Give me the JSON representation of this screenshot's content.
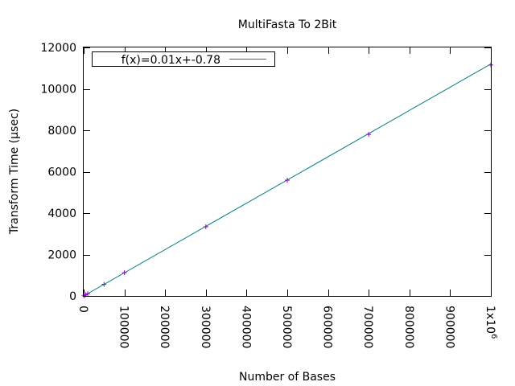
{
  "chart_data": {
    "type": "line",
    "title": "MultiFasta To 2Bit",
    "xlabel": "Number of Bases",
    "ylabel": "Transform Time (µsec)",
    "xlim": [
      0,
      1000000
    ],
    "ylim": [
      0,
      12000
    ],
    "x_ticks": [
      0,
      100000,
      200000,
      300000,
      400000,
      500000,
      600000,
      700000,
      800000,
      900000,
      1000000
    ],
    "x_tick_labels": [
      "0",
      "100000",
      "200000",
      "300000",
      "400000",
      "500000",
      "600000",
      "700000",
      "800000",
      "900000",
      "1x10"
    ],
    "x_tick_label_last_superscript": "6",
    "y_ticks": [
      0,
      2000,
      4000,
      6000,
      8000,
      10000,
      12000
    ],
    "y_tick_labels": [
      "0",
      "2000",
      "4000",
      "6000",
      "8000",
      "10000",
      "12000"
    ],
    "grid": false,
    "legend_position": "top-left",
    "series": [
      {
        "name": "f(x)=0.01x+-0.78",
        "kind": "fit-line",
        "color": "#008080",
        "slope": 0.0112,
        "intercept": -0.78,
        "x": [
          0,
          1000000
        ],
        "y": [
          0,
          11200
        ]
      },
      {
        "kind": "points",
        "marker": "plus",
        "color": "#9400d3",
        "x": [
          1000,
          5000,
          10000,
          50000,
          100000,
          300000,
          500000,
          700000,
          1000000
        ],
        "y": [
          12,
          55,
          110,
          560,
          1120,
          3340,
          5590,
          7800,
          11150
        ]
      }
    ]
  }
}
